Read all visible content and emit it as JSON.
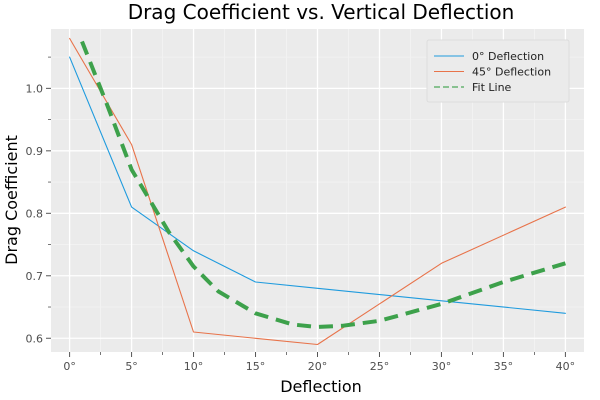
{
  "chart_data": {
    "type": "line",
    "title": "Drag Coefficient vs. Vertical Deflection",
    "xlabel": "Deflection",
    "ylabel": "Drag Coefficient",
    "x": [
      0,
      5,
      10,
      15,
      20,
      30,
      40
    ],
    "xlim": [
      -1.5,
      41.5
    ],
    "ylim": [
      0.578,
      1.095
    ],
    "xticks": [
      0,
      5,
      10,
      15,
      20,
      25,
      30,
      35,
      40
    ],
    "xtick_labels": [
      "0°",
      "5°",
      "10°",
      "15°",
      "20°",
      "25°",
      "30°",
      "35°",
      "40°"
    ],
    "yticks": [
      0.6,
      0.7,
      0.8,
      0.9,
      1.0
    ],
    "ytick_labels": [
      "0.6",
      "0.7",
      "0.8",
      "0.9",
      "1.0"
    ],
    "grid": true,
    "legend_position": "top-right",
    "series": [
      {
        "name": "0° Deflection",
        "color": "#1f9bde",
        "style": "solid",
        "x": [
          0,
          5,
          10,
          15,
          20,
          30,
          40
        ],
        "values": [
          1.05,
          0.81,
          0.74,
          0.69,
          0.68,
          0.66,
          0.64
        ]
      },
      {
        "name": "45° Deflection",
        "color": "#e8734a",
        "style": "solid",
        "x": [
          0,
          5,
          10,
          15,
          20,
          30,
          40
        ],
        "values": [
          1.08,
          0.91,
          0.61,
          0.6,
          0.59,
          0.72,
          0.81
        ]
      },
      {
        "name": "Fit Line",
        "color": "#3da14b",
        "style": "dashed",
        "x": [
          1,
          3,
          5,
          8,
          10,
          12,
          15,
          18,
          20,
          22,
          25,
          30,
          35,
          40
        ],
        "values": [
          1.075,
          0.975,
          0.87,
          0.77,
          0.715,
          0.675,
          0.64,
          0.622,
          0.618,
          0.62,
          0.628,
          0.655,
          0.69,
          0.72
        ]
      }
    ]
  }
}
